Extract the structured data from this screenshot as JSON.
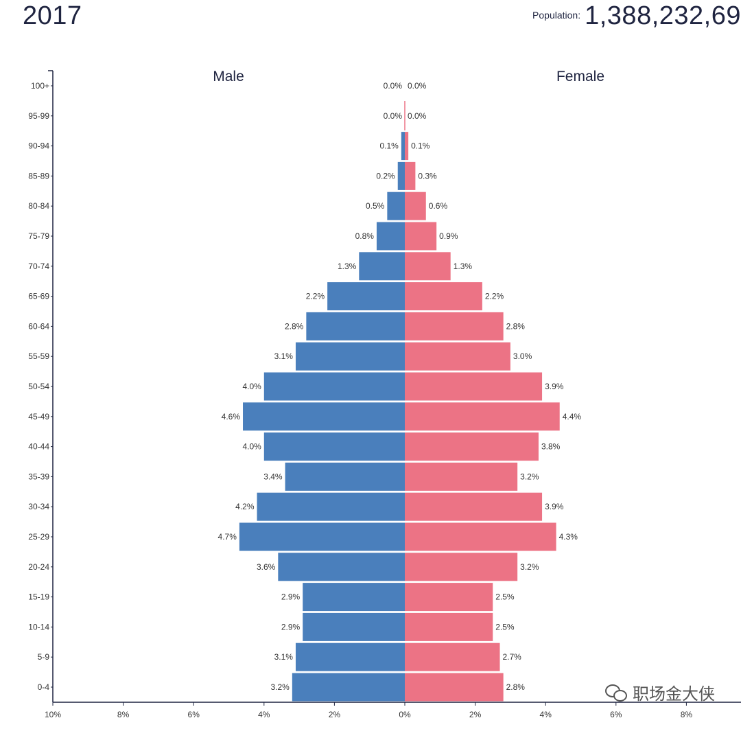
{
  "header": {
    "year": "2017",
    "population_label": "Population:",
    "population_value": "1,388,232,69"
  },
  "watermark": {
    "text": "职场金大侠",
    "icon": "wechat-icon"
  },
  "chart_data": {
    "type": "bar",
    "title": "2017",
    "series_names": {
      "left": "Male",
      "right": "Female"
    },
    "colors": {
      "male": "#4a7fbc",
      "female": "#ec7385"
    },
    "xlim": [
      -10,
      10
    ],
    "x_ticks": [
      "10%",
      "8%",
      "6%",
      "4%",
      "2%",
      "0%",
      "2%",
      "4%",
      "6%",
      "8%"
    ],
    "x_tick_values": [
      -10,
      -8,
      -6,
      -4,
      -2,
      0,
      2,
      4,
      6,
      8
    ],
    "categories": [
      "100+",
      "95-99",
      "90-94",
      "85-89",
      "80-84",
      "75-79",
      "70-74",
      "65-69",
      "60-64",
      "55-59",
      "50-54",
      "45-49",
      "40-44",
      "35-39",
      "30-34",
      "25-29",
      "20-24",
      "15-19",
      "10-14",
      "5-9",
      "0-4"
    ],
    "series": [
      {
        "name": "Male",
        "values": [
          0.0,
          0.0,
          0.1,
          0.2,
          0.5,
          0.8,
          1.3,
          2.2,
          2.8,
          3.1,
          4.0,
          4.6,
          4.0,
          3.4,
          4.2,
          4.7,
          3.6,
          2.9,
          2.9,
          3.1,
          3.2
        ],
        "labels": [
          "0.0%",
          "0.0%",
          "0.1%",
          "0.2%",
          "0.5%",
          "0.8%",
          "1.3%",
          "2.2%",
          "2.8%",
          "3.1%",
          "4.0%",
          "4.6%",
          "4.0%",
          "3.4%",
          "4.2%",
          "4.7%",
          "3.6%",
          "2.9%",
          "2.9%",
          "3.1%",
          "3.2%"
        ]
      },
      {
        "name": "Female",
        "values": [
          0.0,
          0.0,
          0.1,
          0.3,
          0.6,
          0.9,
          1.3,
          2.2,
          2.8,
          3.0,
          3.9,
          4.4,
          3.8,
          3.2,
          3.9,
          4.3,
          3.2,
          2.5,
          2.5,
          2.7,
          2.8
        ],
        "labels": [
          "0.0%",
          "0.0%",
          "0.1%",
          "0.3%",
          "0.6%",
          "0.9%",
          "1.3%",
          "2.2%",
          "2.8%",
          "3.0%",
          "3.9%",
          "4.4%",
          "3.8%",
          "3.2%",
          "3.9%",
          "4.3%",
          "3.2%",
          "2.5%",
          "2.5%",
          "2.7%",
          "2.8%"
        ]
      }
    ]
  }
}
